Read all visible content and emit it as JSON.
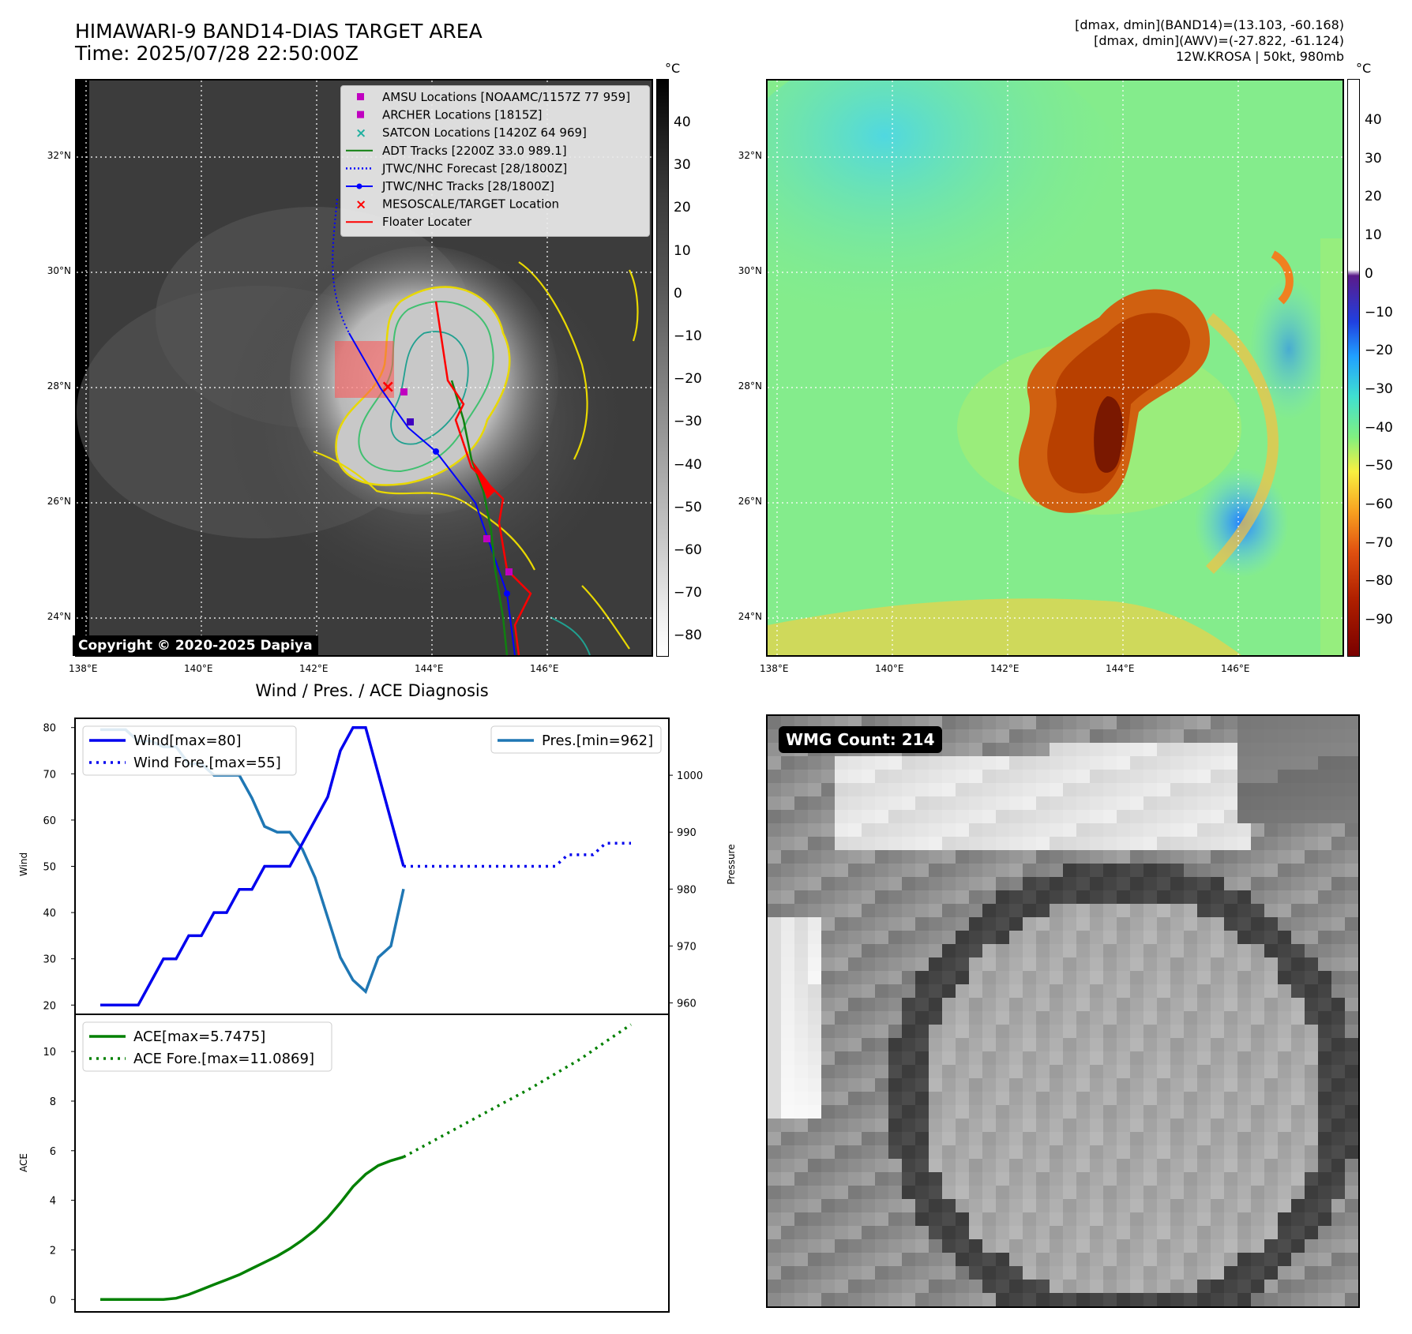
{
  "header": {
    "title": "HIMAWARI-9 BAND14-DIAS TARGET AREA",
    "time": "Time: 2025/07/28 22:50:00Z",
    "info_line1": "[dmax, dmin](BAND14)=(13.103, -60.168)",
    "info_line2": "[dmax, dmin](AWV)=(-27.822, -61.124)",
    "info_line3": "12W.KROSA | 50kt, 980mb"
  },
  "map": {
    "lon_ticks": [
      "138°E",
      "140°E",
      "142°E",
      "144°E",
      "146°E"
    ],
    "lat_ticks": [
      "32°N",
      "30°N",
      "28°N",
      "26°N",
      "24°N"
    ],
    "copyright": "Copyright © 2020-2025 Dapiya",
    "legend": [
      {
        "label": "AMSU Locations [NOAAMC/1157Z 77 959]",
        "marker": "square",
        "color": "#c000c0"
      },
      {
        "label": "ARCHER Locations [1815Z]",
        "marker": "square",
        "color": "#c000c0"
      },
      {
        "label": "SATCON Locations [1420Z 64 969]",
        "marker": "x",
        "color": "#20b0a0"
      },
      {
        "label": "ADT Tracks [2200Z 33.0 989.1]",
        "marker": "line",
        "color": "#108010"
      },
      {
        "label": "JTWC/NHC Forecast [28/1800Z]",
        "marker": "dotted",
        "color": "#0000ff"
      },
      {
        "label": "JTWC/NHC Tracks [28/1800Z]",
        "marker": "line-dot",
        "color": "#0000ff"
      },
      {
        "label": "MESOSCALE/TARGET Location",
        "marker": "x",
        "color": "#ff0000"
      },
      {
        "label": "Floater Locater",
        "marker": "line",
        "color": "#ff0000"
      }
    ]
  },
  "colorbar_gray": {
    "unit": "°C",
    "ticks": [
      "40",
      "30",
      "20",
      "10",
      "0",
      "−10",
      "−20",
      "−30",
      "−40",
      "−50",
      "−60",
      "−70",
      "−80"
    ]
  },
  "colorbar_color": {
    "unit": "°C",
    "ticks": [
      "40",
      "30",
      "20",
      "10",
      "0",
      "−10",
      "−20",
      "−30",
      "−40",
      "−50",
      "−60",
      "−70",
      "−80",
      "−90"
    ]
  },
  "diag": {
    "title": "Wind / Pres. / ACE Diagnosis",
    "wind_ylabel": "Wind",
    "pres_ylabel": "Pressure",
    "ace_ylabel": "ACE",
    "wind_ticks": [
      "80",
      "70",
      "60",
      "50",
      "40",
      "30",
      "20"
    ],
    "pres_ticks": [
      "1000",
      "990",
      "980",
      "970",
      "960"
    ],
    "ace_ticks": [
      "10",
      "8",
      "6",
      "4",
      "2",
      "0"
    ],
    "legend_wind": "Wind[max=80]",
    "legend_wind_fore": "Wind Fore.[max=55]",
    "legend_pres": "Pres.[min=962]",
    "legend_ace": "ACE[max=5.7475]",
    "legend_ace_fore": "ACE Fore.[max=11.0869]"
  },
  "wmg": {
    "label": "WMG Count: 214"
  },
  "chart_data": [
    {
      "type": "line",
      "title": "Wind / Pres. / ACE Diagnosis",
      "ylabel": "Wind",
      "ylim": [
        18,
        82
      ],
      "series": [
        {
          "name": "Wind[max=80]",
          "x": [
            0,
            1,
            2,
            3,
            4,
            5,
            6,
            7,
            8,
            9,
            10,
            11,
            12,
            13,
            14,
            15,
            16,
            17,
            18,
            19,
            20,
            21,
            22,
            23,
            24
          ],
          "values": [
            20,
            20,
            20,
            20,
            25,
            30,
            30,
            35,
            35,
            40,
            40,
            45,
            45,
            50,
            50,
            50,
            55,
            60,
            65,
            75,
            80,
            80,
            70,
            60,
            50
          ],
          "color": "#0000ee",
          "style": "solid"
        },
        {
          "name": "Wind Fore.[max=55]",
          "x": [
            24,
            26,
            28,
            30,
            32,
            34,
            36,
            37,
            38,
            39,
            40,
            41,
            42
          ],
          "values": [
            50,
            50,
            50,
            50,
            50,
            50,
            50,
            52.5,
            52.5,
            52.5,
            55,
            55,
            55
          ],
          "color": "#0000ee",
          "style": "dotted"
        }
      ]
    },
    {
      "type": "line",
      "ylabel": "Pressure",
      "ylim": [
        958,
        1010
      ],
      "series": [
        {
          "name": "Pres.[min=962]",
          "x": [
            0,
            1,
            2,
            3,
            4,
            5,
            6,
            7,
            8,
            9,
            10,
            11,
            12,
            13,
            14,
            15,
            16,
            17,
            18,
            19,
            20,
            21,
            22,
            23,
            24
          ],
          "values": [
            1008,
            1008,
            1008,
            1006,
            1006,
            1005,
            1005,
            1002,
            1002,
            1000,
            1000,
            1000,
            996,
            991,
            990,
            990,
            987,
            982,
            975,
            968,
            964,
            962,
            968,
            970,
            980
          ],
          "color": "#1f77b4",
          "style": "solid"
        }
      ]
    },
    {
      "type": "line",
      "ylabel": "ACE",
      "ylim": [
        -0.5,
        11.5
      ],
      "series": [
        {
          "name": "ACE[max=5.7475]",
          "x": [
            0,
            1,
            2,
            3,
            4,
            5,
            6,
            7,
            8,
            9,
            10,
            11,
            12,
            13,
            14,
            15,
            16,
            17,
            18,
            19,
            20,
            21,
            22,
            23,
            24
          ],
          "values": [
            0,
            0,
            0,
            0,
            0,
            0,
            0.05,
            0.2,
            0.4,
            0.6,
            0.8,
            1.0,
            1.25,
            1.5,
            1.75,
            2.05,
            2.4,
            2.8,
            3.3,
            3.9,
            4.55,
            5.05,
            5.4,
            5.6,
            5.7475
          ],
          "color": "#008000",
          "style": "solid"
        },
        {
          "name": "ACE Fore.[max=11.0869]",
          "x": [
            24,
            26,
            28,
            30,
            32,
            34,
            36,
            38,
            40,
            42
          ],
          "values": [
            5.7475,
            6.3,
            6.85,
            7.4,
            7.95,
            8.5,
            9.1,
            9.7,
            10.4,
            11.0869
          ],
          "color": "#008000",
          "style": "dotted"
        }
      ]
    }
  ]
}
